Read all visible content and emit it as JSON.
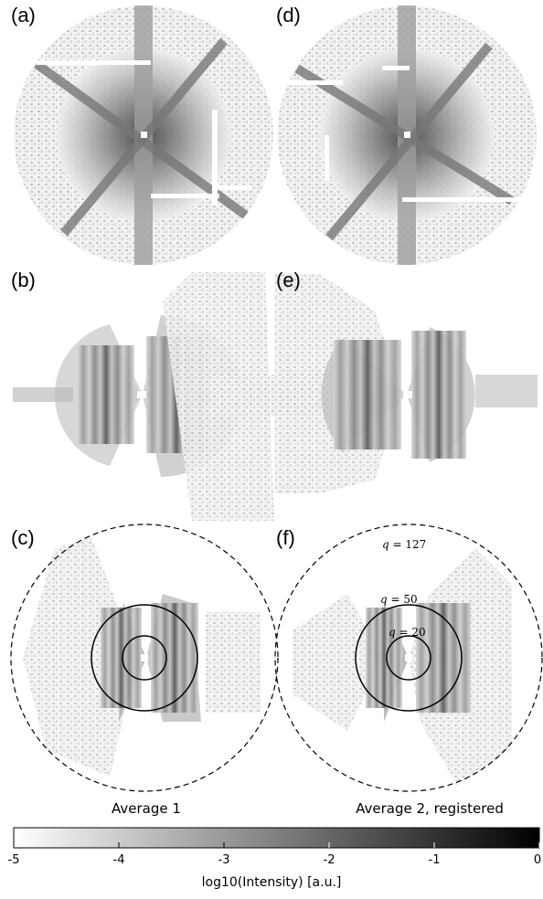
{
  "panels": {
    "a": "(a)",
    "b": "(b)",
    "c": "(c)",
    "d": "(d)",
    "e": "(e)",
    "f": "(f)"
  },
  "captions": {
    "left": "Average 1",
    "right": "Average 2, registered"
  },
  "q_labels": {
    "outer": "127",
    "middle": "50",
    "inner": "20"
  },
  "colorbar": {
    "ticks": [
      "-5",
      "-4",
      "-3",
      "-2",
      "-1",
      "0"
    ],
    "title": "log10(Intensity) [a.u.]",
    "min_color": "#ffffff",
    "max_color": "#000000"
  }
}
